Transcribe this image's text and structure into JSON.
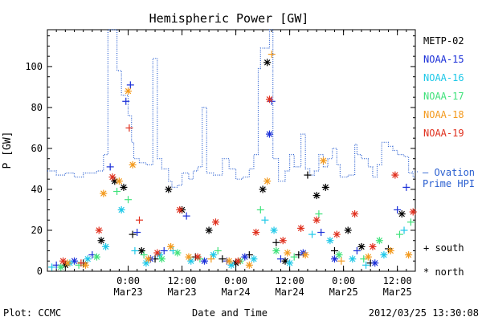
{
  "chart_data": {
    "type": "scatter",
    "title": "Hemispheric Power [GW]",
    "ylabel": "P [GW]",
    "xlabel": "Date and Time",
    "xlim": [
      "2012-03-22T06:00",
      "2012-03-25T16:00"
    ],
    "ylim": [
      0,
      118
    ],
    "yticks": [
      0,
      20,
      40,
      60,
      80,
      100
    ],
    "xticks": [
      {
        "x": "2012-03-23T00:00",
        "time": "0:00",
        "date": "Mar23"
      },
      {
        "x": "2012-03-23T12:00",
        "time": "12:00",
        "date": "Mar23"
      },
      {
        "x": "2012-03-24T00:00",
        "time": "0:00",
        "date": "Mar24"
      },
      {
        "x": "2012-03-24T12:00",
        "time": "12:00",
        "date": "Mar24"
      },
      {
        "x": "2012-03-25T00:00",
        "time": "0:00",
        "date": "Mar25"
      },
      {
        "x": "2012-03-25T12:00",
        "time": "12:00",
        "date": "Mar25"
      }
    ],
    "legend": {
      "placement": "right",
      "entries": [
        {
          "name": "METP-02",
          "color": "#000000"
        },
        {
          "name": "NOAA-15",
          "color": "#1a2fd8"
        },
        {
          "name": "NOAA-16",
          "color": "#1ec8e8"
        },
        {
          "name": "NOAA-17",
          "color": "#3fe27a"
        },
        {
          "name": "NOAA-18",
          "color": "#f39a1e"
        },
        {
          "name": "NOAA-19",
          "color": "#e0301e"
        }
      ],
      "ovation_line1": "— Ovation",
      "ovation_line2": "Prime HPI",
      "ovation_color": "#2a5fd0",
      "south_label": "+ south",
      "north_label": "* north"
    },
    "series": [
      {
        "name": "Ovation Prime HPI",
        "style": "dotted-step",
        "color": "#2a5fd0",
        "points": [
          [
            "2012-03-22T06:00",
            49
          ],
          [
            "2012-03-22T08:00",
            47
          ],
          [
            "2012-03-22T10:00",
            48
          ],
          [
            "2012-03-22T12:00",
            46
          ],
          [
            "2012-03-22T14:00",
            48
          ],
          [
            "2012-03-22T17:00",
            49
          ],
          [
            "2012-03-22T18:30",
            57
          ],
          [
            "2012-03-22T19:30",
            118
          ],
          [
            "2012-03-22T21:00",
            118
          ],
          [
            "2012-03-22T21:30",
            98
          ],
          [
            "2012-03-22T22:30",
            86
          ],
          [
            "2012-03-23T00:00",
            76
          ],
          [
            "2012-03-23T00:45",
            63
          ],
          [
            "2012-03-23T01:15",
            55
          ],
          [
            "2012-03-23T02:30",
            53
          ],
          [
            "2012-03-23T04:00",
            52
          ],
          [
            "2012-03-23T05:30",
            104
          ],
          [
            "2012-03-23T06:30",
            55
          ],
          [
            "2012-03-23T07:30",
            50
          ],
          [
            "2012-03-23T09:00",
            44
          ],
          [
            "2012-03-23T09:45",
            41
          ],
          [
            "2012-03-23T11:00",
            42
          ],
          [
            "2012-03-23T12:00",
            48
          ],
          [
            "2012-03-23T13:30",
            45
          ],
          [
            "2012-03-23T14:30",
            49
          ],
          [
            "2012-03-23T15:30",
            51
          ],
          [
            "2012-03-23T16:30",
            80
          ],
          [
            "2012-03-23T17:30",
            48
          ],
          [
            "2012-03-23T19:00",
            47
          ],
          [
            "2012-03-23T21:00",
            55
          ],
          [
            "2012-03-23T22:30",
            50
          ],
          [
            "2012-03-24T00:00",
            45
          ],
          [
            "2012-03-24T01:30",
            46
          ],
          [
            "2012-03-24T03:00",
            50
          ],
          [
            "2012-03-24T04:00",
            57
          ],
          [
            "2012-03-24T05:00",
            99
          ],
          [
            "2012-03-24T05:30",
            109
          ],
          [
            "2012-03-24T07:00",
            109
          ],
          [
            "2012-03-24T07:30",
            118
          ],
          [
            "2012-03-24T08:15",
            55
          ],
          [
            "2012-03-24T09:30",
            44
          ],
          [
            "2012-03-24T11:00",
            49
          ],
          [
            "2012-03-24T12:00",
            57
          ],
          [
            "2012-03-24T13:00",
            51
          ],
          [
            "2012-03-24T14:30",
            67
          ],
          [
            "2012-03-24T15:30",
            50
          ],
          [
            "2012-03-24T16:30",
            47
          ],
          [
            "2012-03-24T17:30",
            49
          ],
          [
            "2012-03-24T18:30",
            57
          ],
          [
            "2012-03-24T19:30",
            51
          ],
          [
            "2012-03-24T20:30",
            55
          ],
          [
            "2012-03-24T21:30",
            60
          ],
          [
            "2012-03-24T22:30",
            52
          ],
          [
            "2012-03-24T23:15",
            46
          ],
          [
            "2012-03-25T01:00",
            47
          ],
          [
            "2012-03-25T02:30",
            62
          ],
          [
            "2012-03-25T03:00",
            57
          ],
          [
            "2012-03-25T04:00",
            55
          ],
          [
            "2012-03-25T05:30",
            51
          ],
          [
            "2012-03-25T06:30",
            46
          ],
          [
            "2012-03-25T07:30",
            52
          ],
          [
            "2012-03-25T08:30",
            63
          ],
          [
            "2012-03-25T10:00",
            61
          ],
          [
            "2012-03-25T11:00",
            59
          ],
          [
            "2012-03-25T12:00",
            57
          ],
          [
            "2012-03-25T13:30",
            56
          ],
          [
            "2012-03-25T14:30",
            48
          ],
          [
            "2012-03-25T15:30",
            46
          ]
        ]
      },
      {
        "name": "METP-02",
        "color": "#000000",
        "points": [
          [
            "2012-03-22T10:00",
            3,
            "*"
          ],
          [
            "2012-03-22T14:00",
            4,
            "+"
          ],
          [
            "2012-03-22T18:00",
            15,
            "*"
          ],
          [
            "2012-03-22T21:00",
            44,
            "*"
          ],
          [
            "2012-03-22T23:00",
            41,
            "*"
          ],
          [
            "2012-03-23T01:00",
            18,
            "+"
          ],
          [
            "2012-03-23T03:00",
            10,
            "*"
          ],
          [
            "2012-03-23T06:00",
            6,
            "+"
          ],
          [
            "2012-03-23T09:00",
            40,
            "*"
          ],
          [
            "2012-03-23T12:00",
            30,
            "*"
          ],
          [
            "2012-03-23T15:00",
            7,
            "+"
          ],
          [
            "2012-03-23T18:00",
            20,
            "*"
          ],
          [
            "2012-03-23T21:00",
            6,
            "+"
          ],
          [
            "2012-03-24T00:00",
            4,
            "*"
          ],
          [
            "2012-03-24T03:00",
            8,
            "+"
          ],
          [
            "2012-03-24T06:00",
            40,
            "*"
          ],
          [
            "2012-03-24T07:00",
            102,
            "*"
          ],
          [
            "2012-03-24T09:00",
            14,
            "+"
          ],
          [
            "2012-03-24T11:00",
            5,
            "*"
          ],
          [
            "2012-03-24T14:00",
            8,
            "+"
          ],
          [
            "2012-03-24T16:00",
            47,
            "+"
          ],
          [
            "2012-03-24T18:00",
            37,
            "*"
          ],
          [
            "2012-03-24T20:00",
            41,
            "*"
          ],
          [
            "2012-03-24T22:00",
            10,
            "+"
          ],
          [
            "2012-03-25T01:00",
            20,
            "*"
          ],
          [
            "2012-03-25T04:00",
            12,
            "*"
          ],
          [
            "2012-03-25T06:00",
            4,
            "+"
          ],
          [
            "2012-03-25T10:00",
            11,
            "+"
          ],
          [
            "2012-03-25T13:00",
            28,
            "*"
          ]
        ]
      },
      {
        "name": "NOAA-15",
        "color": "#1a2fd8",
        "points": [
          [
            "2012-03-22T08:00",
            3,
            "+"
          ],
          [
            "2012-03-22T12:00",
            5,
            "*"
          ],
          [
            "2012-03-22T16:00",
            8,
            "+"
          ],
          [
            "2012-03-22T20:00",
            51,
            "+"
          ],
          [
            "2012-03-22T23:30",
            83,
            "+"
          ],
          [
            "2012-03-23T00:30",
            91,
            "+"
          ],
          [
            "2012-03-23T02:00",
            19,
            "+"
          ],
          [
            "2012-03-23T05:00",
            6,
            "*"
          ],
          [
            "2012-03-23T08:00",
            10,
            "+"
          ],
          [
            "2012-03-23T13:00",
            27,
            "+"
          ],
          [
            "2012-03-23T17:00",
            5,
            "*"
          ],
          [
            "2012-03-23T22:00",
            5,
            "+"
          ],
          [
            "2012-03-24T02:00",
            7,
            "*"
          ],
          [
            "2012-03-24T07:30",
            67,
            "*"
          ],
          [
            "2012-03-24T08:00",
            83,
            "+"
          ],
          [
            "2012-03-24T10:00",
            6,
            "+"
          ],
          [
            "2012-03-24T15:00",
            9,
            "*"
          ],
          [
            "2012-03-24T19:00",
            19,
            "+"
          ],
          [
            "2012-03-24T22:00",
            6,
            "*"
          ],
          [
            "2012-03-25T03:00",
            10,
            "+"
          ],
          [
            "2012-03-25T07:00",
            4,
            "*"
          ],
          [
            "2012-03-25T12:00",
            30,
            "+"
          ],
          [
            "2012-03-25T14:00",
            41,
            "+"
          ]
        ]
      },
      {
        "name": "NOAA-16",
        "color": "#1ec8e8",
        "points": [
          [
            "2012-03-22T07:00",
            2,
            "+"
          ],
          [
            "2012-03-22T11:00",
            4,
            "*"
          ],
          [
            "2012-03-22T15:00",
            6,
            "*"
          ],
          [
            "2012-03-22T19:00",
            12,
            "*"
          ],
          [
            "2012-03-22T22:30",
            30,
            "*"
          ],
          [
            "2012-03-23T01:30",
            10,
            "+"
          ],
          [
            "2012-03-23T04:00",
            4,
            "*"
          ],
          [
            "2012-03-23T07:00",
            8,
            "*"
          ],
          [
            "2012-03-23T10:00",
            10,
            "+"
          ],
          [
            "2012-03-23T14:00",
            5,
            "*"
          ],
          [
            "2012-03-23T19:00",
            8,
            "*"
          ],
          [
            "2012-03-23T23:00",
            3,
            "*"
          ],
          [
            "2012-03-24T04:00",
            6,
            "*"
          ],
          [
            "2012-03-24T06:30",
            25,
            "+"
          ],
          [
            "2012-03-24T08:30",
            20,
            "*"
          ],
          [
            "2012-03-24T12:00",
            4,
            "*"
          ],
          [
            "2012-03-24T17:00",
            18,
            "+"
          ],
          [
            "2012-03-24T21:00",
            15,
            "*"
          ],
          [
            "2012-03-25T02:00",
            6,
            "*"
          ],
          [
            "2012-03-25T05:00",
            3,
            "+"
          ],
          [
            "2012-03-25T09:00",
            8,
            "*"
          ],
          [
            "2012-03-25T13:30",
            20,
            "+"
          ]
        ]
      },
      {
        "name": "NOAA-17",
        "color": "#3fe27a",
        "points": [
          [
            "2012-03-22T09:00",
            2,
            "*"
          ],
          [
            "2012-03-22T13:00",
            3,
            "+"
          ],
          [
            "2012-03-22T17:00",
            7,
            "*"
          ],
          [
            "2012-03-22T21:30",
            39,
            "+"
          ],
          [
            "2012-03-23T00:00",
            35,
            "+"
          ],
          [
            "2012-03-23T03:30",
            8,
            "+"
          ],
          [
            "2012-03-23T07:30",
            6,
            "*"
          ],
          [
            "2012-03-23T11:00",
            9,
            "*"
          ],
          [
            "2012-03-23T16:00",
            6,
            "+"
          ],
          [
            "2012-03-23T20:00",
            10,
            "+"
          ],
          [
            "2012-03-24T01:00",
            5,
            "*"
          ],
          [
            "2012-03-24T05:30",
            30,
            "+"
          ],
          [
            "2012-03-24T09:00",
            10,
            "*"
          ],
          [
            "2012-03-24T13:00",
            7,
            "+"
          ],
          [
            "2012-03-24T18:30",
            28,
            "+"
          ],
          [
            "2012-03-24T23:00",
            8,
            "*"
          ],
          [
            "2012-03-25T04:30",
            6,
            "+"
          ],
          [
            "2012-03-25T08:00",
            15,
            "*"
          ],
          [
            "2012-03-25T12:30",
            18,
            "+"
          ],
          [
            "2012-03-25T15:00",
            24,
            "+"
          ]
        ]
      },
      {
        "name": "NOAA-18",
        "color": "#f39a1e",
        "points": [
          [
            "2012-03-22T10:30",
            4,
            "*"
          ],
          [
            "2012-03-22T14:30",
            3,
            "*"
          ],
          [
            "2012-03-22T18:30",
            38,
            "*"
          ],
          [
            "2012-03-22T22:00",
            44,
            "*"
          ],
          [
            "2012-03-23T00:00",
            88,
            "*"
          ],
          [
            "2012-03-23T01:00",
            52,
            "*"
          ],
          [
            "2012-03-23T04:30",
            6,
            "*"
          ],
          [
            "2012-03-23T09:30",
            12,
            "*"
          ],
          [
            "2012-03-23T13:30",
            7,
            "*"
          ],
          [
            "2012-03-23T18:30",
            6,
            "+"
          ],
          [
            "2012-03-23T22:30",
            5,
            "*"
          ],
          [
            "2012-03-24T03:00",
            3,
            "*"
          ],
          [
            "2012-03-24T07:00",
            44,
            "*"
          ],
          [
            "2012-03-24T08:00",
            106,
            "+"
          ],
          [
            "2012-03-24T11:30",
            9,
            "*"
          ],
          [
            "2012-03-24T15:30",
            8,
            "*"
          ],
          [
            "2012-03-24T19:30",
            54,
            "*"
          ],
          [
            "2012-03-24T23:30",
            5,
            "+"
          ],
          [
            "2012-03-25T05:30",
            7,
            "*"
          ],
          [
            "2012-03-25T10:30",
            10,
            "*"
          ],
          [
            "2012-03-25T14:30",
            8,
            "*"
          ]
        ]
      },
      {
        "name": "NOAA-19",
        "color": "#e0301e",
        "points": [
          [
            "2012-03-22T09:30",
            5,
            "*"
          ],
          [
            "2012-03-22T13:30",
            4,
            "+"
          ],
          [
            "2012-03-22T17:30",
            20,
            "*"
          ],
          [
            "2012-03-22T20:30",
            46,
            "*"
          ],
          [
            "2012-03-23T00:15",
            70,
            "+"
          ],
          [
            "2012-03-23T02:30",
            25,
            "+"
          ],
          [
            "2012-03-23T06:30",
            9,
            "*"
          ],
          [
            "2012-03-23T11:30",
            30,
            "*"
          ],
          [
            "2012-03-23T15:30",
            7,
            "*"
          ],
          [
            "2012-03-23T19:30",
            24,
            "*"
          ],
          [
            "2012-03-24T00:30",
            5,
            "*"
          ],
          [
            "2012-03-24T04:30",
            19,
            "*"
          ],
          [
            "2012-03-24T07:30",
            84,
            "*"
          ],
          [
            "2012-03-24T10:30",
            15,
            "*"
          ],
          [
            "2012-03-24T14:30",
            21,
            "*"
          ],
          [
            "2012-03-24T18:00",
            25,
            "*"
          ],
          [
            "2012-03-24T22:30",
            18,
            "*"
          ],
          [
            "2012-03-25T02:30",
            28,
            "*"
          ],
          [
            "2012-03-25T06:30",
            12,
            "*"
          ],
          [
            "2012-03-25T11:30",
            47,
            "*"
          ],
          [
            "2012-03-25T15:30",
            29,
            "*"
          ]
        ]
      }
    ]
  },
  "footer": {
    "plot_credit": "Plot: CCMC",
    "timestamp": "2012/03/25 13:30:08"
  }
}
